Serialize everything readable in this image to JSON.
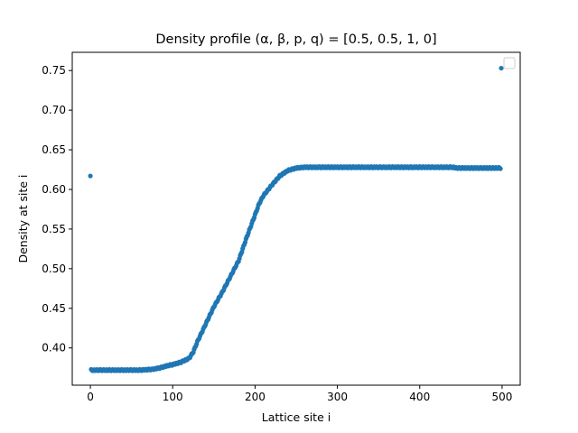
{
  "chart_data": {
    "type": "scatter",
    "title": "Density profile (α, β, p, q) = [0.5, 0.5, 1, 0]",
    "xlabel": "Lattice site i",
    "ylabel": "Density at site i",
    "xlim": [
      -22,
      522
    ],
    "ylim": [
      0.353,
      0.773
    ],
    "xticks": [
      0,
      100,
      200,
      300,
      400,
      500
    ],
    "yticks": [
      0.4,
      0.45,
      0.5,
      0.55,
      0.6,
      0.65,
      0.7,
      0.75
    ],
    "ytick_labels": [
      "0.40",
      "0.45",
      "0.50",
      "0.55",
      "0.60",
      "0.65",
      "0.70",
      "0.75"
    ],
    "grid": false,
    "legend": "top-right (empty)",
    "marker_color": "#1f77b4",
    "series": [
      {
        "outliers": [
          {
            "x": 0,
            "y": 0.617
          },
          {
            "x": 499,
            "y": 0.753
          }
        ],
        "profile_x": [
          1,
          60,
          75,
          85,
          95,
          100,
          110,
          120,
          125,
          130,
          140,
          150,
          160,
          170,
          180,
          190,
          200,
          205,
          210,
          220,
          230,
          240,
          250,
          260,
          300,
          350,
          400,
          440,
          445,
          470,
          498
        ],
        "profile_y": [
          0.372,
          0.372,
          0.373,
          0.375,
          0.378,
          0.379,
          0.382,
          0.387,
          0.395,
          0.408,
          0.43,
          0.452,
          0.47,
          0.49,
          0.51,
          0.54,
          0.568,
          0.582,
          0.592,
          0.605,
          0.617,
          0.624,
          0.627,
          0.628,
          0.628,
          0.628,
          0.628,
          0.628,
          0.627,
          0.627,
          0.627
        ]
      }
    ]
  }
}
